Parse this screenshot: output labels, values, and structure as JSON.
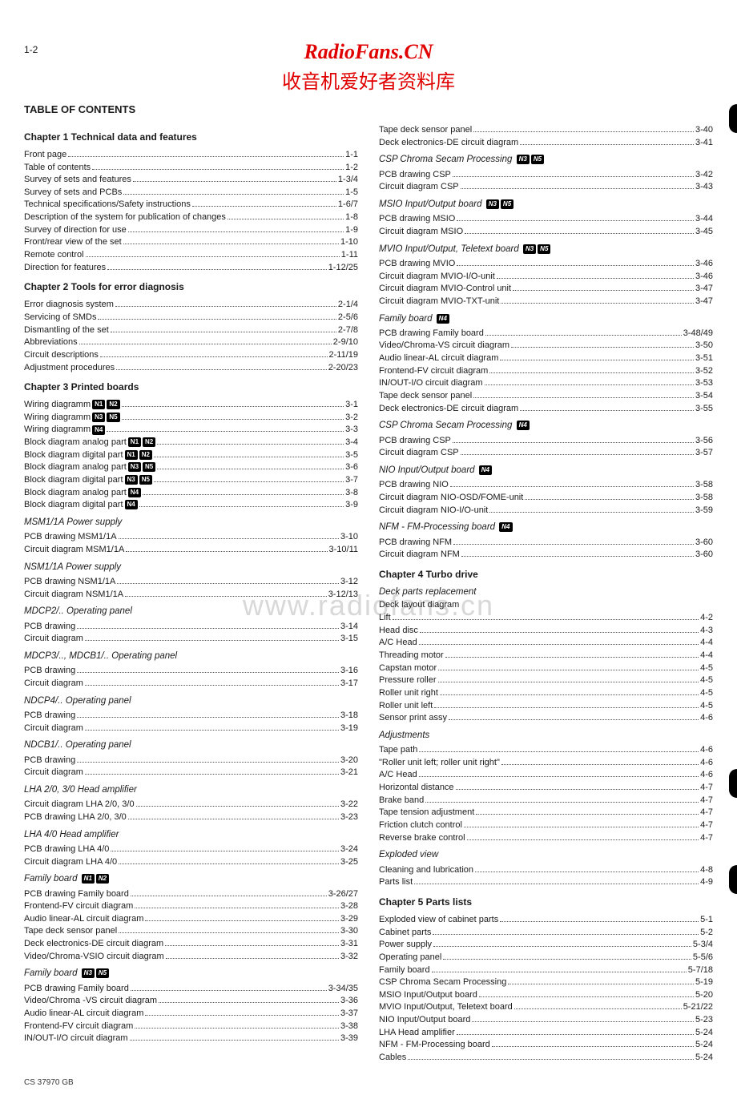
{
  "page_number": "1-2",
  "header": {
    "title": "RadioFans.CN",
    "subtitle": "收音机爱好者资料库"
  },
  "toc_title": "TABLE OF CONTENTS",
  "watermark": "www.radiofans.cn",
  "footer": "CS 37970 GB",
  "left": [
    {
      "type": "chapter",
      "text": "Chapter 1    Technical data and features"
    },
    {
      "type": "entry",
      "t": "Front page",
      "p": "1-1"
    },
    {
      "type": "entry",
      "t": "Table of contents",
      "p": "1-2"
    },
    {
      "type": "entry",
      "t": "Survey of sets and features",
      "p": "1-3/4"
    },
    {
      "type": "entry",
      "t": "Survey of sets and PCBs",
      "p": "1-5"
    },
    {
      "type": "entry",
      "t": "Technical specifications/Safety instructions",
      "p": "1-6/7"
    },
    {
      "type": "entry",
      "t": "Description of the system for publication of changes",
      "p": "1-8"
    },
    {
      "type": "entry",
      "t": "Survey of direction for use",
      "p": "1-9"
    },
    {
      "type": "entry",
      "t": "Front/rear view of the set",
      "p": "1-10"
    },
    {
      "type": "entry",
      "t": "Remote control",
      "p": "1-11"
    },
    {
      "type": "entry",
      "t": "Direction for features",
      "p": "1-12/25"
    },
    {
      "type": "chapter",
      "text": "Chapter 2    Tools for error diagnosis"
    },
    {
      "type": "entry",
      "t": "Error diagnosis system",
      "p": "2-1/4"
    },
    {
      "type": "entry",
      "t": "Servicing of SMDs",
      "p": "2-5/6"
    },
    {
      "type": "entry",
      "t": "Dismantling of the set",
      "p": "2-7/8"
    },
    {
      "type": "entry",
      "t": "Abbreviations",
      "p": "2-9/10"
    },
    {
      "type": "entry",
      "t": "Circuit descriptions",
      "p": "2-11/19"
    },
    {
      "type": "entry",
      "t": "Adjustment procedures",
      "p": "2-20/23"
    },
    {
      "type": "chapter",
      "text": "Chapter 3    Printed boards"
    },
    {
      "type": "entry",
      "t": "Wiring diagramm",
      "badges": [
        "N1",
        "N2"
      ],
      "p": "3-1"
    },
    {
      "type": "entry",
      "t": "Wiring diagramm",
      "badges": [
        "N3",
        "N5"
      ],
      "p": "3-2"
    },
    {
      "type": "entry",
      "t": "Wiring diagramm",
      "badges": [
        "N4"
      ],
      "p": "3-3"
    },
    {
      "type": "entry",
      "t": "Block diagram analog part",
      "badges": [
        "N1",
        "N2"
      ],
      "p": "3-4"
    },
    {
      "type": "entry",
      "t": "Block diagram digital part",
      "badges": [
        "N1",
        "N2"
      ],
      "p": "3-5"
    },
    {
      "type": "entry",
      "t": "Block diagram analog part",
      "badges": [
        "N3",
        "N5"
      ],
      "p": "3-6"
    },
    {
      "type": "entry",
      "t": "Block diagram digital part",
      "badges": [
        "N3",
        "N5"
      ],
      "p": "3-7"
    },
    {
      "type": "entry",
      "t": "Block diagram analog part",
      "badges": [
        "N4"
      ],
      "p": "3-8"
    },
    {
      "type": "entry",
      "t": "Block diagram digital part",
      "badges": [
        "N4"
      ],
      "p": "3-9"
    },
    {
      "type": "sub",
      "text": "MSM1/1A Power supply"
    },
    {
      "type": "entry",
      "t": "PCB drawing MSM1/1A",
      "p": "3-10"
    },
    {
      "type": "entry",
      "t": "Circuit diagram MSM1/1A",
      "p": "3-10/11"
    },
    {
      "type": "sub",
      "text": "NSM1/1A Power supply"
    },
    {
      "type": "entry",
      "t": "PCB drawing NSM1/1A",
      "p": "3-12"
    },
    {
      "type": "entry",
      "t": "Circuit diagram NSM1/1A",
      "p": "3-12/13"
    },
    {
      "type": "sub",
      "text": "MDCP2/.. Operating panel"
    },
    {
      "type": "entry",
      "t": "PCB drawing",
      "p": "3-14"
    },
    {
      "type": "entry",
      "t": "Circuit diagram",
      "p": "3-15"
    },
    {
      "type": "sub",
      "text": "MDCP3/.., MDCB1/.. Operating panel"
    },
    {
      "type": "entry",
      "t": "PCB drawing",
      "p": "3-16"
    },
    {
      "type": "entry",
      "t": "Circuit diagram",
      "p": "3-17"
    },
    {
      "type": "sub",
      "text": "NDCP4/.. Operating panel"
    },
    {
      "type": "entry",
      "t": "PCB drawing",
      "p": "3-18"
    },
    {
      "type": "entry",
      "t": "Circuit diagram",
      "p": "3-19"
    },
    {
      "type": "sub",
      "text": "NDCB1/.. Operating panel"
    },
    {
      "type": "entry",
      "t": "PCB drawing",
      "p": "3-20"
    },
    {
      "type": "entry",
      "t": "Circuit diagram",
      "p": "3-21"
    },
    {
      "type": "sub",
      "text": "LHA 2/0, 3/0 Head amplifier"
    },
    {
      "type": "entry",
      "t": "Circuit diagram LHA 2/0, 3/0",
      "p": "3-22"
    },
    {
      "type": "entry",
      "t": "PCB drawing LHA 2/0, 3/0",
      "p": "3-23"
    },
    {
      "type": "sub",
      "text": "LHA 4/0 Head amplifier"
    },
    {
      "type": "entry",
      "t": "PCB drawing LHA 4/0",
      "p": "3-24"
    },
    {
      "type": "entry",
      "t": "Circuit diagram LHA 4/0",
      "p": "3-25"
    },
    {
      "type": "sub",
      "text": "Family board",
      "badges": [
        "N1",
        "N2"
      ]
    },
    {
      "type": "entry",
      "t": "PCB drawing Family board",
      "p": "3-26/27"
    },
    {
      "type": "entry",
      "t": "Frontend-FV circuit diagram",
      "p": "3-28"
    },
    {
      "type": "entry",
      "t": "Audio linear-AL circuit diagram",
      "p": "3-29"
    },
    {
      "type": "entry",
      "t": "Tape deck sensor panel",
      "p": "3-30"
    },
    {
      "type": "entry",
      "t": "Deck electronics-DE circuit diagram",
      "p": "3-31"
    },
    {
      "type": "entry",
      "t": "Video/Chroma-VSIO circuit diagram",
      "p": "3-32"
    },
    {
      "type": "sub",
      "text": "Family board",
      "badges": [
        "N3",
        "N5"
      ]
    },
    {
      "type": "entry",
      "t": "PCB drawing Family board",
      "p": "3-34/35"
    },
    {
      "type": "entry",
      "t": "Video/Chroma -VS circuit diagram",
      "p": "3-36"
    },
    {
      "type": "entry",
      "t": "Audio linear-AL circuit diagram",
      "p": "3-37"
    },
    {
      "type": "entry",
      "t": "Frontend-FV circuit diagram",
      "p": "3-38"
    },
    {
      "type": "entry",
      "t": "IN/OUT-I/O circuit diagram",
      "p": "3-39"
    }
  ],
  "right": [
    {
      "type": "entry",
      "t": "Tape deck sensor panel",
      "p": "3-40"
    },
    {
      "type": "entry",
      "t": "Deck electronics-DE circuit diagram",
      "p": "3-41"
    },
    {
      "type": "sub",
      "text": "CSP Chroma Secam Processing",
      "badges": [
        "N3",
        "N5"
      ]
    },
    {
      "type": "entry",
      "t": "PCB drawing CSP",
      "p": "3-42"
    },
    {
      "type": "entry",
      "t": "Circuit diagram CSP",
      "p": "3-43"
    },
    {
      "type": "sub",
      "text": "MSIO Input/Output board",
      "badges": [
        "N3",
        "N5"
      ]
    },
    {
      "type": "entry",
      "t": "PCB drawing MSIO",
      "p": "3-44"
    },
    {
      "type": "entry",
      "t": "Circuit diagram MSIO",
      "p": "3-45"
    },
    {
      "type": "sub",
      "text": "MVIO Input/Output, Teletext board",
      "badges": [
        "N3",
        "N5"
      ]
    },
    {
      "type": "entry",
      "t": "PCB drawing MVIO",
      "p": "3-46"
    },
    {
      "type": "entry",
      "t": "Circuit diagram MVIO-I/O-unit",
      "p": "3-46"
    },
    {
      "type": "entry",
      "t": "Circuit diagram MVIO-Control unit",
      "p": "3-47"
    },
    {
      "type": "entry",
      "t": "Circuit diagram MVIO-TXT-unit",
      "p": "3-47"
    },
    {
      "type": "sub",
      "text": "Family board",
      "badges": [
        "N4"
      ]
    },
    {
      "type": "entry",
      "t": "PCB drawing Family board",
      "p": "3-48/49"
    },
    {
      "type": "entry",
      "t": "Video/Chroma-VS circuit diagram",
      "p": "3-50"
    },
    {
      "type": "entry",
      "t": "Audio linear-AL circuit diagram",
      "p": "3-51"
    },
    {
      "type": "entry",
      "t": "Frontend-FV circuit diagram",
      "p": "3-52"
    },
    {
      "type": "entry",
      "t": "IN/OUT-I/O circuit diagram",
      "p": "3-53"
    },
    {
      "type": "entry",
      "t": "Tape deck sensor panel",
      "p": "3-54"
    },
    {
      "type": "entry",
      "t": "Deck electronics-DE circuit diagram",
      "p": "3-55"
    },
    {
      "type": "sub",
      "text": "CSP Chroma Secam Processing",
      "badges": [
        "N4"
      ]
    },
    {
      "type": "entry",
      "t": "PCB drawing CSP",
      "p": "3-56"
    },
    {
      "type": "entry",
      "t": "Circuit diagram CSP",
      "p": "3-57"
    },
    {
      "type": "sub",
      "text": "NIO Input/Output board",
      "badges": [
        "N4"
      ]
    },
    {
      "type": "entry",
      "t": "PCB drawing NIO",
      "p": "3-58"
    },
    {
      "type": "entry",
      "t": "Circuit diagram NIO-OSD/FOME-unit",
      "p": "3-58"
    },
    {
      "type": "entry",
      "t": "Circuit diagram NIO-I/O-unit",
      "p": "3-59"
    },
    {
      "type": "sub",
      "text": "NFM - FM-Processing board",
      "badges": [
        "N4"
      ]
    },
    {
      "type": "entry",
      "t": "PCB drawing NFM",
      "p": "3-60"
    },
    {
      "type": "entry",
      "t": "Circuit diagram NFM",
      "p": "3-60"
    },
    {
      "type": "chapter",
      "text": "Chapter 4    Turbo drive"
    },
    {
      "type": "sub",
      "text": "Deck parts replacement"
    },
    {
      "type": "plain",
      "t": "Deck layout diagram"
    },
    {
      "type": "entry",
      "t": "Lift",
      "p": "4-2"
    },
    {
      "type": "entry",
      "t": "Head disc",
      "p": "4-3"
    },
    {
      "type": "entry",
      "t": "A/C Head",
      "p": "4-4"
    },
    {
      "type": "entry",
      "t": "Threading motor",
      "p": "4-4"
    },
    {
      "type": "entry",
      "t": "Capstan motor",
      "p": "4-5"
    },
    {
      "type": "entry",
      "t": "Pressure roller",
      "p": "4-5"
    },
    {
      "type": "entry",
      "t": "Roller unit right",
      "p": "4-5"
    },
    {
      "type": "entry",
      "t": "Roller unit left",
      "p": "4-5"
    },
    {
      "type": "entry",
      "t": "Sensor print assy",
      "p": "4-6"
    },
    {
      "type": "sub",
      "text": "Adjustments"
    },
    {
      "type": "entry",
      "t": "Tape path",
      "p": "4-6"
    },
    {
      "type": "entry",
      "t": "\"Roller unit left; roller unit right\"",
      "p": "4-6"
    },
    {
      "type": "entry",
      "t": "A/C Head",
      "p": "4-6"
    },
    {
      "type": "entry",
      "t": "Horizontal distance",
      "p": "4-7"
    },
    {
      "type": "entry",
      "t": "Brake band",
      "p": "4-7"
    },
    {
      "type": "entry",
      "t": "Tape tension adjustment",
      "p": "4-7"
    },
    {
      "type": "entry",
      "t": "Friction clutch control",
      "p": "4-7"
    },
    {
      "type": "entry",
      "t": "Reverse brake control",
      "p": "4-7"
    },
    {
      "type": "sub",
      "text": "Exploded view"
    },
    {
      "type": "entry",
      "t": "Cleaning and lubrication",
      "p": "4-8"
    },
    {
      "type": "entry",
      "t": "Parts list",
      "p": "4-9"
    },
    {
      "type": "chapter",
      "text": "Chapter 5    Parts lists"
    },
    {
      "type": "entry",
      "t": "Exploded view of cabinet parts",
      "p": "5-1"
    },
    {
      "type": "entry",
      "t": "Cabinet parts",
      "p": "5-2"
    },
    {
      "type": "entry",
      "t": "Power supply",
      "p": "5-3/4"
    },
    {
      "type": "entry",
      "t": "Operating panel",
      "p": "5-5/6"
    },
    {
      "type": "entry",
      "t": "Family board",
      "p": "5-7/18"
    },
    {
      "type": "entry",
      "t": "CSP Chroma Secam Processing",
      "p": "5-19"
    },
    {
      "type": "entry",
      "t": "MSIO Input/Output board",
      "p": "5-20"
    },
    {
      "type": "entry",
      "t": "MVIO Input/Output, Teletext board",
      "p": "5-21/22"
    },
    {
      "type": "entry",
      "t": "NIO Input/Output board",
      "p": "5-23"
    },
    {
      "type": "entry",
      "t": "LHA Head amplifier",
      "p": "5-24"
    },
    {
      "type": "entry",
      "t": "NFM - FM-Processing board",
      "p": "5-24"
    },
    {
      "type": "entry",
      "t": "Cables",
      "p": "5-24"
    }
  ]
}
